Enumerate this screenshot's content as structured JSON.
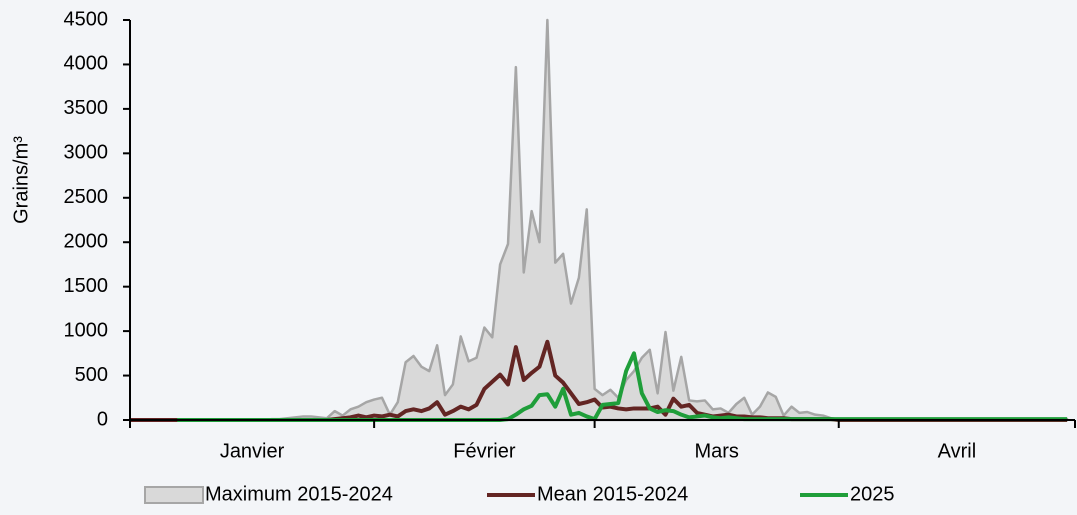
{
  "chart_data": {
    "type": "line",
    "y_label": "Grains/m³",
    "month_labels": [
      "Janvier",
      "Février",
      "Mars",
      "Avril"
    ],
    "x": [
      0,
      1,
      2,
      3,
      4,
      5,
      6,
      7,
      8,
      9,
      10,
      11,
      12,
      13,
      14,
      15,
      16,
      17,
      18,
      19,
      20,
      21,
      22,
      23,
      24,
      25,
      26,
      27,
      28,
      29,
      30,
      31,
      32,
      33,
      34,
      35,
      36,
      37,
      38,
      39,
      40,
      41,
      42,
      43,
      44,
      45,
      46,
      47,
      48,
      49,
      50,
      51,
      52,
      53,
      54,
      55,
      56,
      57,
      58,
      59,
      60,
      61,
      62,
      63,
      64,
      65,
      66,
      67,
      68,
      69,
      70,
      71,
      72,
      73,
      74,
      75,
      76,
      77,
      78,
      79,
      80,
      81,
      82,
      83,
      84,
      85,
      86,
      87,
      88,
      89,
      90,
      91,
      92,
      93,
      94,
      95,
      96,
      97,
      98,
      99,
      100,
      101,
      102,
      103,
      104,
      105,
      106,
      107,
      108,
      109,
      110,
      111,
      112,
      113,
      114,
      115,
      116,
      117,
      118,
      119
    ],
    "xlim": [
      0,
      120
    ],
    "xticks": [
      0,
      31,
      59,
      90,
      120
    ],
    "ylim": [
      0,
      4500
    ],
    "yticks": [
      0,
      500,
      1000,
      1500,
      2000,
      2500,
      3000,
      3500,
      4000,
      4500
    ],
    "series": [
      {
        "name": "Maximum 2015-2024",
        "kind": "area",
        "color": "#d9d9d9",
        "edge_color": "#a6a6a6",
        "values": [
          0,
          0,
          0,
          0,
          0,
          0,
          0,
          0,
          0,
          0,
          0,
          0,
          0,
          0,
          0,
          0,
          0,
          0,
          10,
          10,
          20,
          30,
          40,
          40,
          30,
          20,
          100,
          50,
          120,
          150,
          200,
          230,
          250,
          60,
          200,
          650,
          720,
          600,
          550,
          840,
          280,
          400,
          940,
          660,
          700,
          1040,
          930,
          1750,
          1980,
          3970,
          1660,
          2350,
          2000,
          4500,
          1770,
          1870,
          1310,
          1600,
          2370,
          350,
          280,
          340,
          250,
          450,
          550,
          700,
          790,
          300,
          990,
          330,
          710,
          220,
          210,
          220,
          120,
          130,
          80,
          180,
          250,
          60,
          150,
          310,
          260,
          50,
          150,
          80,
          90,
          60,
          50,
          20,
          10,
          10,
          10,
          10,
          10,
          10,
          10,
          10,
          10,
          10,
          10,
          10,
          10,
          10,
          10,
          10,
          10,
          10,
          10,
          10,
          10,
          10,
          10,
          10,
          10,
          10,
          10,
          10,
          10,
          10
        ]
      },
      {
        "name": "Mean 2015-2024",
        "kind": "line",
        "color": "#632523",
        "values": [
          0,
          0,
          0,
          0,
          0,
          0,
          0,
          0,
          0,
          0,
          0,
          0,
          0,
          0,
          0,
          0,
          0,
          0,
          0,
          0,
          0,
          0,
          0,
          0,
          0,
          0,
          10,
          20,
          30,
          50,
          30,
          50,
          40,
          60,
          40,
          100,
          120,
          100,
          130,
          200,
          60,
          100,
          150,
          120,
          170,
          350,
          430,
          510,
          400,
          820,
          450,
          530,
          600,
          880,
          500,
          420,
          300,
          180,
          200,
          230,
          140,
          150,
          130,
          120,
          130,
          130,
          130,
          150,
          60,
          240,
          150,
          170,
          80,
          60,
          40,
          50,
          60,
          40,
          40,
          30,
          30,
          20,
          20,
          20,
          10,
          10,
          10,
          10,
          10,
          10,
          0,
          0,
          0,
          0,
          0,
          0,
          0,
          0,
          0,
          0,
          0,
          0,
          0,
          0,
          0,
          0,
          0,
          0,
          0,
          0,
          0,
          0,
          0,
          0,
          0,
          0,
          0,
          0,
          0,
          0
        ]
      },
      {
        "name": "2025",
        "kind": "line",
        "color": "#1f9e3a",
        "values": [
          null,
          null,
          null,
          null,
          null,
          null,
          0,
          0,
          0,
          0,
          0,
          0,
          0,
          0,
          0,
          0,
          0,
          0,
          0,
          0,
          0,
          0,
          0,
          0,
          0,
          0,
          0,
          0,
          0,
          0,
          0,
          0,
          0,
          0,
          0,
          0,
          0,
          0,
          0,
          0,
          0,
          0,
          0,
          0,
          0,
          0,
          0,
          0,
          10,
          60,
          120,
          160,
          280,
          290,
          150,
          350,
          60,
          80,
          40,
          10,
          170,
          180,
          190,
          550,
          750,
          300,
          130,
          90,
          110,
          100,
          60,
          30,
          40,
          50,
          30,
          20,
          30,
          20,
          10,
          10,
          10,
          10,
          10,
          10,
          10,
          10,
          10,
          10,
          10,
          10,
          10,
          10,
          10,
          10,
          10,
          10,
          10,
          10,
          10,
          10,
          10,
          10,
          10,
          10,
          10,
          10,
          10,
          10,
          10,
          10,
          10,
          10,
          10,
          10,
          10,
          10,
          10,
          10,
          10,
          10
        ]
      }
    ]
  }
}
